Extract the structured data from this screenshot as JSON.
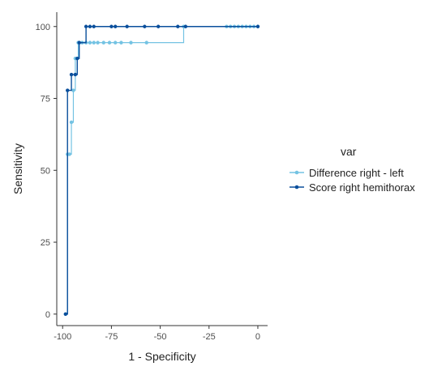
{
  "chart_data": {
    "type": "line",
    "title": "",
    "xlabel": "1 - Specificity",
    "ylabel": "Sensitivity",
    "xlim": [
      -103,
      5
    ],
    "ylim": [
      -4,
      105
    ],
    "xticks": [
      -100,
      -75,
      -50,
      -25,
      0
    ],
    "yticks": [
      0,
      25,
      50,
      75,
      100
    ],
    "xtick_labels": [
      "-100",
      "-75",
      "-50",
      "-25",
      "0"
    ],
    "ytick_labels": [
      "0",
      "25",
      "50",
      "75",
      "100"
    ],
    "grid": false,
    "legend": {
      "title": "var",
      "position": "right"
    },
    "series": [
      {
        "name": "Difference right - left",
        "color": "#74c3e3",
        "step": true,
        "x": [
          -98.5,
          -97.5,
          -96.5,
          -95.5,
          -94.5,
          -93.5,
          -92,
          -90,
          -88,
          -86,
          -84,
          -82,
          -79,
          -76,
          -73,
          -70,
          -65,
          -57,
          -38,
          -16,
          -14,
          -12,
          -10,
          -8,
          -6,
          -4,
          -2,
          0
        ],
        "y": [
          0,
          55.6,
          55.6,
          66.7,
          77.8,
          88.9,
          94.4,
          94.4,
          94.4,
          94.4,
          94.4,
          94.4,
          94.4,
          94.4,
          94.4,
          94.4,
          94.4,
          94.4,
          100,
          100,
          100,
          100,
          100,
          100,
          100,
          100,
          100,
          100
        ]
      },
      {
        "name": "Score right hemithorax",
        "color": "#0a4f9c",
        "step": true,
        "x": [
          -98.5,
          -97.5,
          -95.5,
          -93.5,
          -92.5,
          -91.5,
          -88,
          -86,
          -84,
          -75,
          -73,
          -67,
          -58,
          -51,
          -41,
          -37,
          0
        ],
        "y": [
          0,
          77.8,
          83.3,
          83.3,
          88.9,
          94.4,
          100,
          100,
          100,
          100,
          100,
          100,
          100,
          100,
          100,
          100,
          100
        ]
      }
    ]
  }
}
